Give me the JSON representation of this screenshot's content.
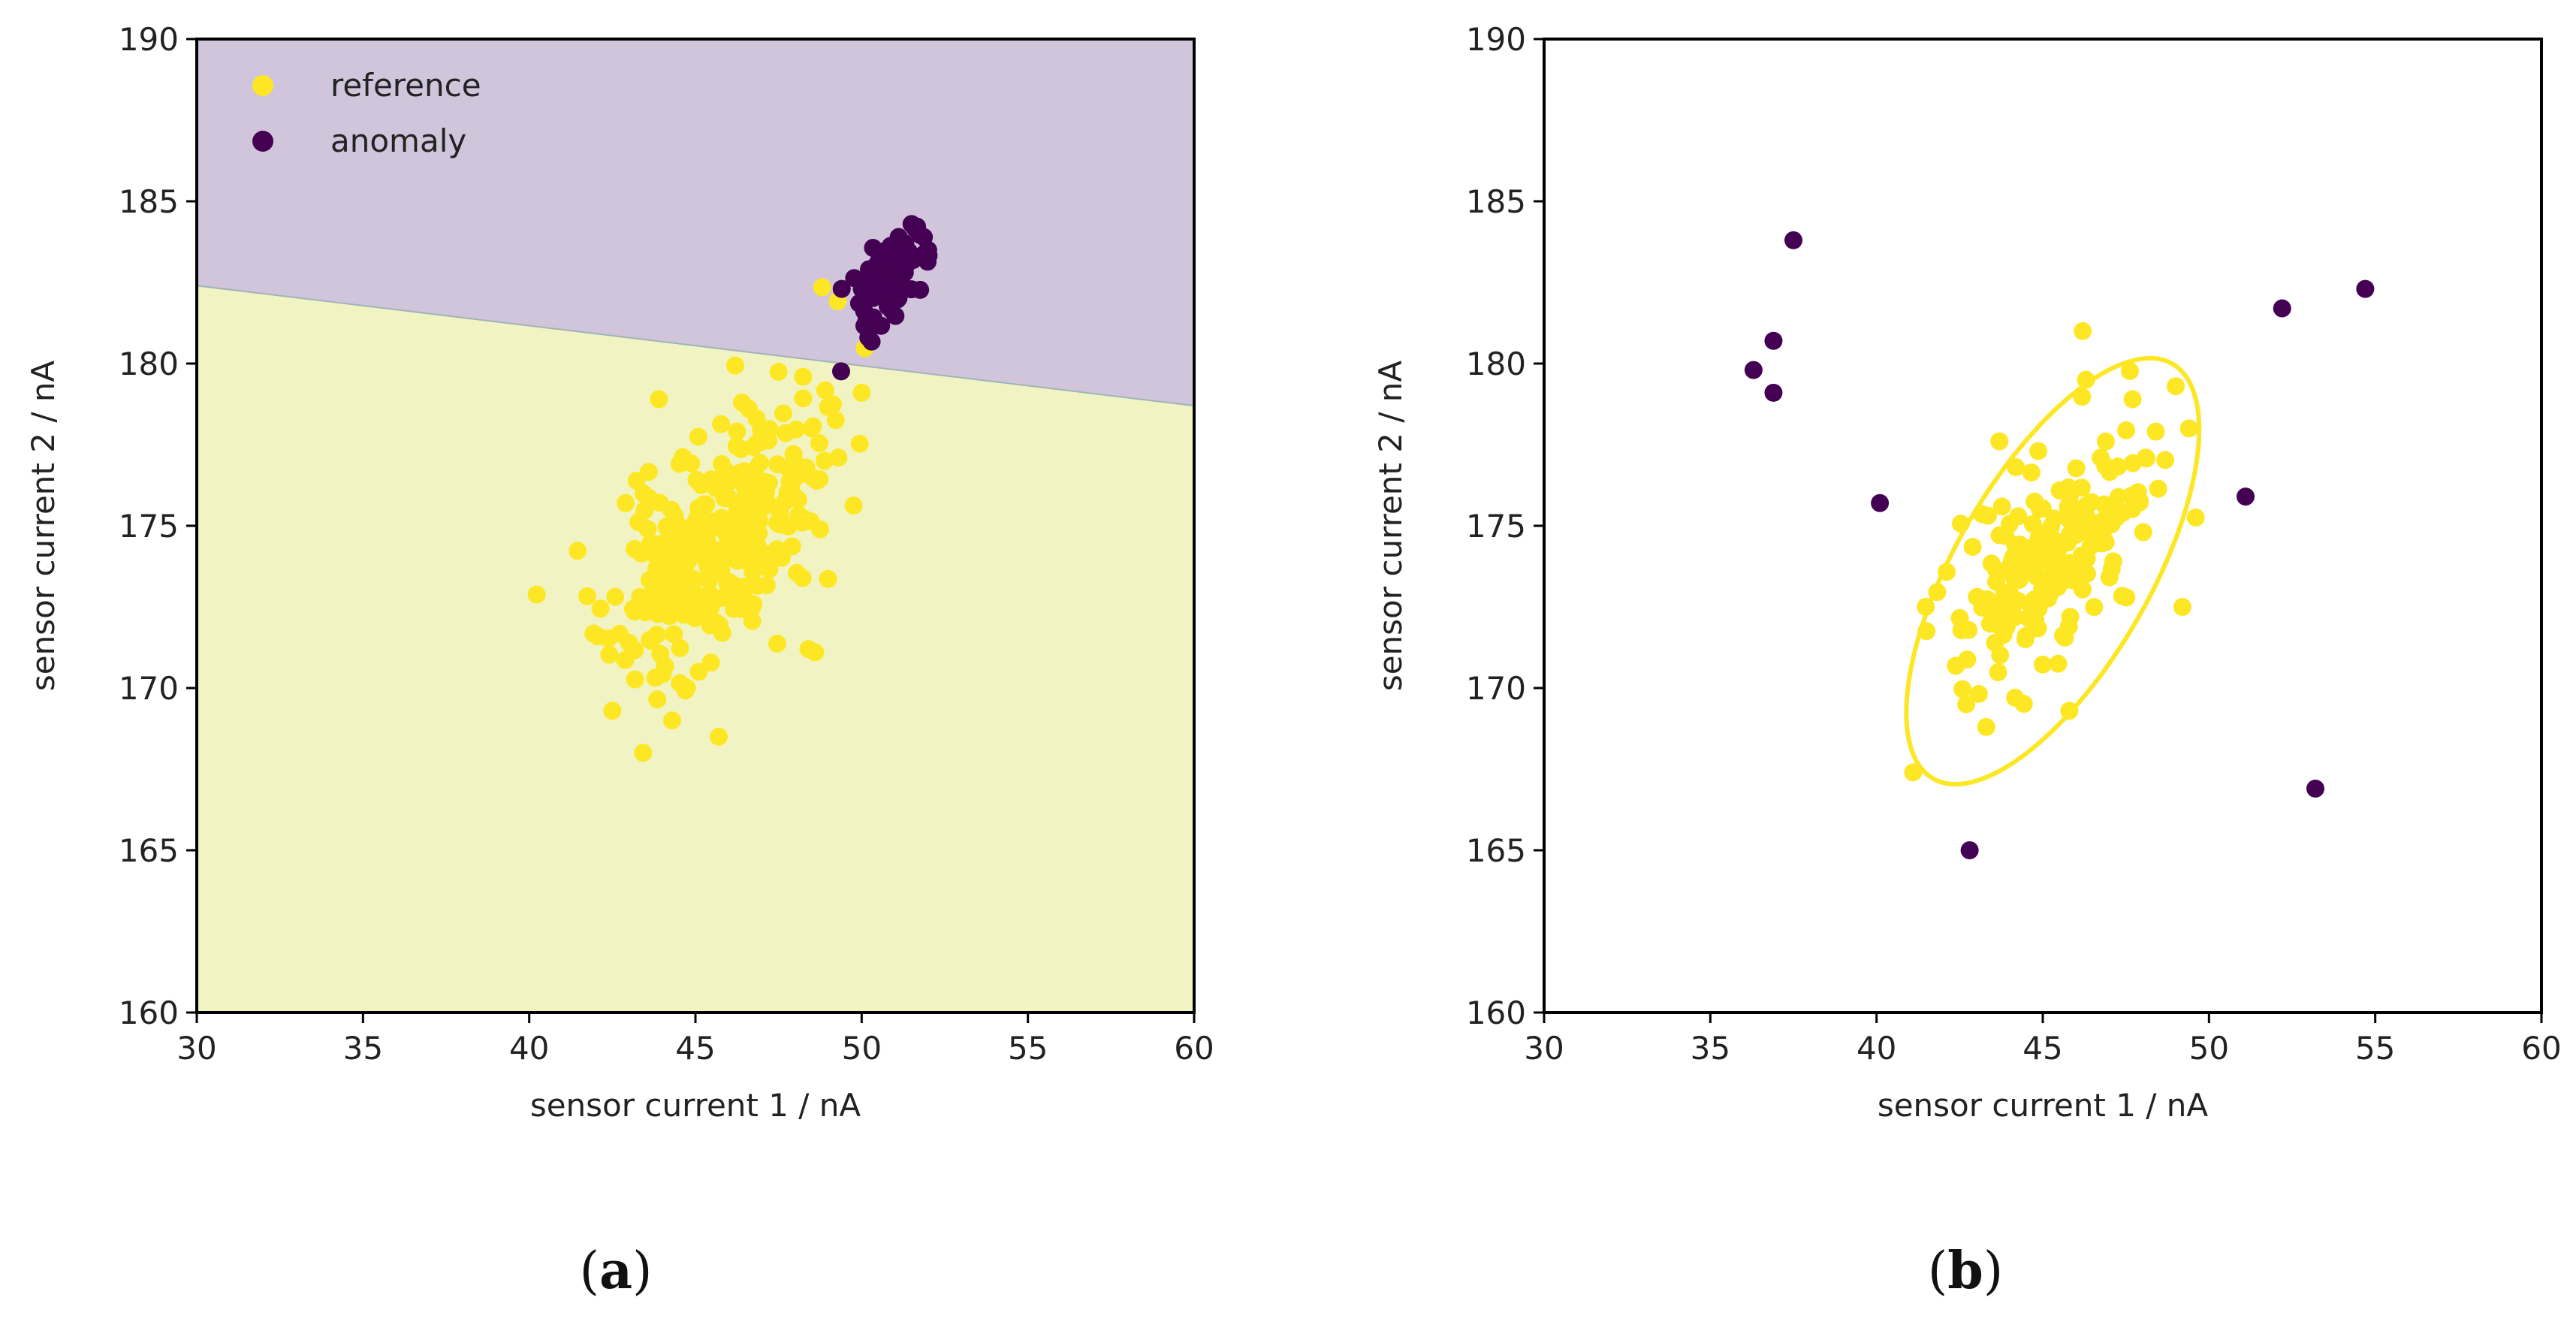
{
  "chart_data": [
    {
      "type": "scatter",
      "panel_label": "a",
      "title": "",
      "xlabel": "sensor current 1 / nA",
      "ylabel": "sensor current 2 / nA",
      "xlim": [
        30,
        60
      ],
      "ylim": [
        160,
        190
      ],
      "xticks": [
        30,
        35,
        40,
        45,
        50,
        55,
        60
      ],
      "yticks": [
        160,
        165,
        170,
        175,
        180,
        185,
        190
      ],
      "grid": false,
      "legend": {
        "placement": "top-left",
        "entries": [
          "reference",
          "anomaly"
        ]
      },
      "decision_boundary": {
        "from": [
          30,
          182.4
        ],
        "to": [
          60,
          178.7
        ],
        "above_label": "anomaly",
        "below_label": "reference",
        "above_color": "#d1c5dc",
        "below_color": "#f1f4c2"
      },
      "series": [
        {
          "name": "reference",
          "color": "#fde725",
          "generated": {
            "count": 320,
            "mean": [
              45.6,
              174.3
            ],
            "sd": [
              1.55,
              2.0
            ],
            "corr": 0.55,
            "seed": 11
          },
          "points": [
            [
              50.0,
              179.1
            ],
            [
              43.9,
              178.9
            ],
            [
              46.4,
              178.8
            ],
            [
              48.4,
              171.2
            ],
            [
              48.6,
              171.1
            ],
            [
              45.7,
              168.5
            ],
            [
              44.3,
              169.0
            ],
            [
              42.5,
              169.3
            ],
            [
              49.3,
              177.1
            ],
            [
              42.9,
              175.7
            ],
            [
              48.5,
              178.0
            ]
          ]
        },
        {
          "name": "anomaly",
          "color": "#440154",
          "generated": {
            "count": 90,
            "mean": [
              50.8,
              182.6
            ],
            "sd": [
              0.55,
              0.85
            ],
            "corr": 0.6,
            "seed": 23
          },
          "points": [
            [
              51.5,
              184.3
            ],
            [
              52.0,
              183.5
            ],
            [
              49.4,
              182.3
            ],
            [
              50.2,
              180.8
            ]
          ]
        }
      ]
    },
    {
      "type": "scatter",
      "panel_label": "b",
      "title": "",
      "xlabel": "sensor current 1 / nA",
      "ylabel": "sensor current 2 / nA",
      "xlim": [
        30,
        60
      ],
      "ylim": [
        160,
        190
      ],
      "xticks": [
        30,
        35,
        40,
        45,
        50,
        55,
        60
      ],
      "yticks": [
        160,
        165,
        170,
        175,
        180,
        185,
        190
      ],
      "grid": false,
      "ellipse": {
        "center": [
          45.3,
          173.6
        ],
        "semi_major": 7.2,
        "semi_minor": 3.0,
        "angle_deg": 60,
        "color": "#fde725"
      },
      "series": [
        {
          "name": "reference",
          "color": "#fde725",
          "generated": {
            "count": 190,
            "mean": [
              45.4,
              174.2
            ],
            "sd": [
              1.45,
              1.75
            ],
            "corr": 0.55,
            "seed": 37
          },
          "points": [
            [
              46.2,
              181.0
            ],
            [
              41.1,
              167.4
            ],
            [
              43.3,
              168.8
            ],
            [
              42.7,
              169.5
            ],
            [
              45.8,
              169.3
            ],
            [
              49.2,
              172.5
            ],
            [
              49.4,
              178.0
            ],
            [
              49.0,
              179.3
            ],
            [
              46.3,
              179.5
            ],
            [
              48.1,
              177.1
            ],
            [
              47.7,
              178.9
            ]
          ]
        },
        {
          "name": "anomaly",
          "color": "#440154",
          "points": [
            [
              37.5,
              183.8
            ],
            [
              36.3,
              179.8
            ],
            [
              36.9,
              180.7
            ],
            [
              36.9,
              179.1
            ],
            [
              40.1,
              175.7
            ],
            [
              42.8,
              165.0
            ],
            [
              51.1,
              175.9
            ],
            [
              52.2,
              181.7
            ],
            [
              54.7,
              182.3
            ],
            [
              53.2,
              166.9
            ]
          ]
        }
      ]
    }
  ]
}
